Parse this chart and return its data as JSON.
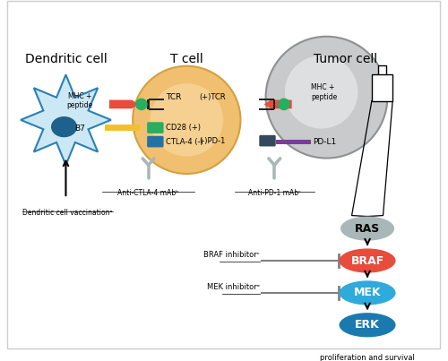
{
  "title_dc": "Dendritic cell",
  "title_tc": "T cell",
  "title_tumor": "Tumor cell",
  "label_mhc_dc": "MHC +\npeptide",
  "label_b7": "B7",
  "label_tcr_left": "TCR",
  "label_cd28": "CD28 (+)",
  "label_ctla4": "CTLA-4 (-)",
  "label_anti_ctla4": "Anti-CTLA-4 mAbᵇ",
  "label_plus_tcr": "(+)TCR",
  "label_minus_pd1": "(-)PD-1",
  "label_mhc_tumor": "MHC +\npeptide",
  "label_pdl1": "PD-L1",
  "label_anti_pd1": "Anti-PD-1 mAbᶜ",
  "label_dc_vac": "Dendritic cell vaccinationᵃ",
  "label_ras": "RAS",
  "label_braf": "BRAF",
  "label_mek": "MEK",
  "label_erk": "ERK",
  "label_braf_inh": "BRAF inhibitorᶜ",
  "label_mek_inh": "MEK inhibitorᵉ",
  "label_prolif": "proliferation and survival",
  "color_dc_body": "#cce8f4",
  "color_dc_border": "#2980b9",
  "color_dc_nucleus": "#1f618d",
  "color_tcell_outer": "#f0c070",
  "color_tcell_inner": "#f5d090",
  "color_tumor_outer": "#c8cacb",
  "color_tumor_inner": "#dddfe0",
  "color_mhc_red": "#e74c3c",
  "color_b7_yellow": "#f0c030",
  "color_cd28_green": "#27ae60",
  "color_ctla4_blue": "#2471a3",
  "color_tcr_black": "#222222",
  "color_green_dot": "#27ae60",
  "color_pdl1_purple": "#7d3c98",
  "color_pd1_dark": "#34495e",
  "color_ras_gray": "#aab7b8",
  "color_braf_red": "#e74c3c",
  "color_mek_cyan": "#2eaadc",
  "color_erk_teal": "#1a7ab0",
  "color_antibody": "#aab7b8",
  "color_inh_line": "#808080",
  "bg": "#ffffff"
}
